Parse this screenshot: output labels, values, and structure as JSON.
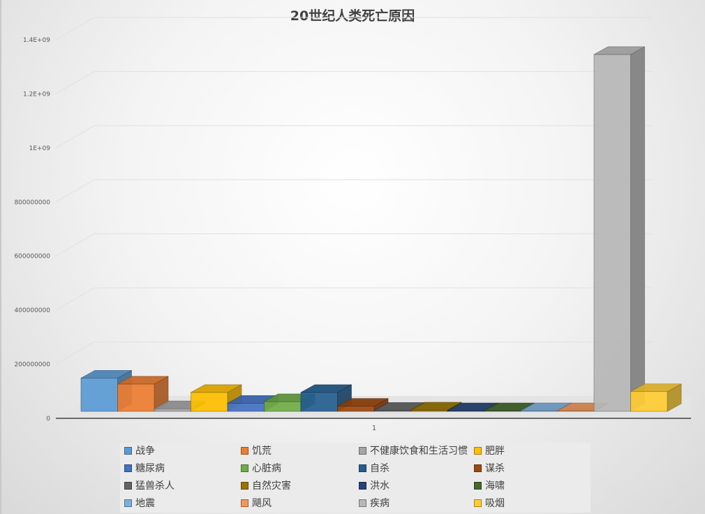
{
  "chart_data": {
    "type": "bar",
    "title": "20世纪人类死亡原因",
    "xlabel": "",
    "ylabel": "",
    "categories": [
      "1"
    ],
    "ylim": [
      0,
      1400000000
    ],
    "y_ticks": [
      0,
      200000000,
      400000000,
      600000000,
      800000000,
      1000000000,
      1200000000,
      1400000000
    ],
    "y_tick_labels": [
      "0",
      "200000000",
      "400000000",
      "600000000",
      "800000000",
      "1E+09",
      "1.2E+09",
      "1.4E+09"
    ],
    "grid": true,
    "three_d": true,
    "legend_position": "bottom",
    "series": [
      {
        "name": "战争",
        "values": [
          123000000
        ],
        "color": "#5b9bd5"
      },
      {
        "name": "饥荒",
        "values": [
          101000000
        ],
        "color": "#ed7d31"
      },
      {
        "name": "不健康饮食和生活习惯",
        "values": [
          10000000
        ],
        "color": "#a5a5a5"
      },
      {
        "name": "肥胖",
        "values": [
          70000000
        ],
        "color": "#ffc000"
      },
      {
        "name": "糖尿病",
        "values": [
          30000000
        ],
        "color": "#4472c4"
      },
      {
        "name": "心脏病",
        "values": [
          36000000
        ],
        "color": "#70ad47"
      },
      {
        "name": "自杀",
        "values": [
          70000000
        ],
        "color": "#255e91"
      },
      {
        "name": "谋杀",
        "values": [
          19000000
        ],
        "color": "#9e480e"
      },
      {
        "name": "猛兽杀人",
        "values": [
          4000000
        ],
        "color": "#636363"
      },
      {
        "name": "自然灾害",
        "values": [
          5000000
        ],
        "color": "#997300"
      },
      {
        "name": "洪水",
        "values": [
          2000000
        ],
        "color": "#264478"
      },
      {
        "name": "海啸",
        "values": [
          1000000
        ],
        "color": "#43682b"
      },
      {
        "name": "地震",
        "values": [
          1000000
        ],
        "color": "#7cafdd"
      },
      {
        "name": "飓风",
        "values": [
          1000000
        ],
        "color": "#f1975a"
      },
      {
        "name": "疾病",
        "values": [
          1320000000
        ],
        "color": "#b7b7b7"
      },
      {
        "name": "吸烟",
        "values": [
          73000000
        ],
        "color": "#ffcd33"
      }
    ]
  }
}
